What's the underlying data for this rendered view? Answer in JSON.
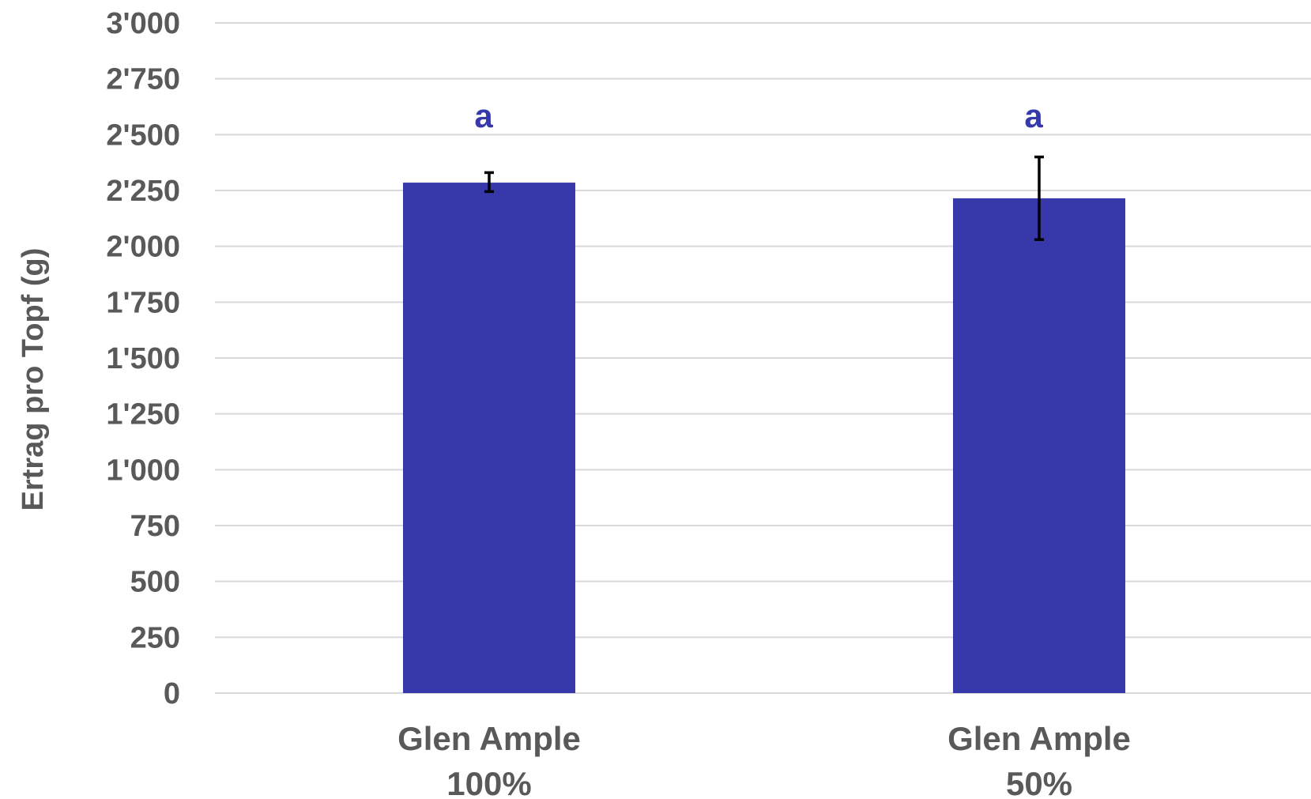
{
  "chart_data": {
    "type": "bar",
    "title": "",
    "xlabel": "",
    "ylabel": "Ertrag pro Topf (g)",
    "ylim": [
      0,
      3000
    ],
    "yticks": [
      {
        "value": 0,
        "label": "0"
      },
      {
        "value": 250,
        "label": "250"
      },
      {
        "value": 500,
        "label": "500"
      },
      {
        "value": 750,
        "label": "750"
      },
      {
        "value": 1000,
        "label": "1'000"
      },
      {
        "value": 1250,
        "label": "1'250"
      },
      {
        "value": 1500,
        "label": "1'500"
      },
      {
        "value": 1750,
        "label": "1'750"
      },
      {
        "value": 2000,
        "label": "2'000"
      },
      {
        "value": 2250,
        "label": "2'250"
      },
      {
        "value": 2500,
        "label": "2'500"
      },
      {
        "value": 2750,
        "label": "2'750"
      },
      {
        "value": 3000,
        "label": "3'000"
      }
    ],
    "grid": true,
    "categories": [
      {
        "line1": "Glen Ample",
        "line2": "100%"
      },
      {
        "line1": "Glen Ample",
        "line2": "50%"
      }
    ],
    "values": [
      2285,
      2215
    ],
    "error_low": [
      2245,
      2030
    ],
    "error_high": [
      2330,
      2400
    ],
    "significance_labels": [
      "a",
      "a"
    ],
    "colors": {
      "bar": "#3739AA",
      "significance": "#3739AA",
      "error_bar": "#000000",
      "grid": "#D9D9D9",
      "text": "#595959"
    }
  }
}
